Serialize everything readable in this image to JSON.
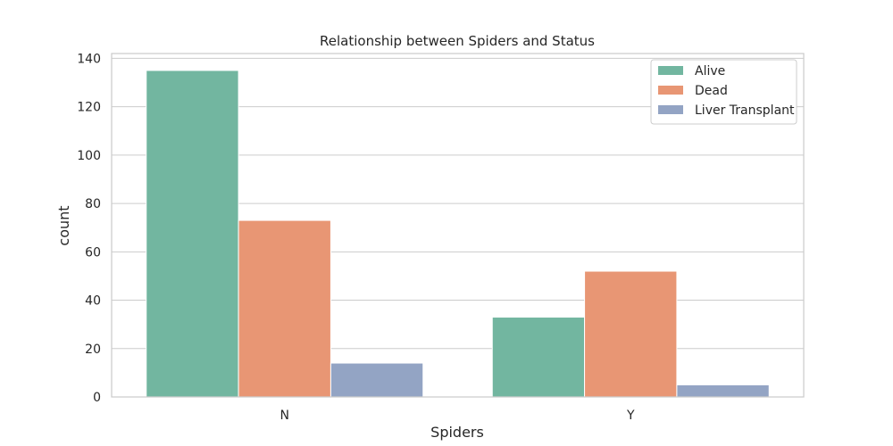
{
  "chart_data": {
    "type": "bar",
    "title": "Relationship between Spiders and Status",
    "xlabel": "Spiders",
    "ylabel": "count",
    "categories": [
      "N",
      "Y"
    ],
    "series": [
      {
        "name": "Alive",
        "values": [
          135,
          33
        ],
        "color": "#72b6a0"
      },
      {
        "name": "Dead",
        "values": [
          73,
          52
        ],
        "color": "#e89674"
      },
      {
        "name": "Liver Transplant",
        "values": [
          14,
          5
        ],
        "color": "#93a4c4"
      }
    ],
    "ylim": [
      0,
      142
    ],
    "yticks": [
      0,
      20,
      40,
      60,
      80,
      100,
      120,
      140
    ],
    "grid": true,
    "legend_position": "top-right"
  },
  "colors": {
    "grid": "#cccccc",
    "frame": "#cccccc",
    "text": "#262626"
  }
}
